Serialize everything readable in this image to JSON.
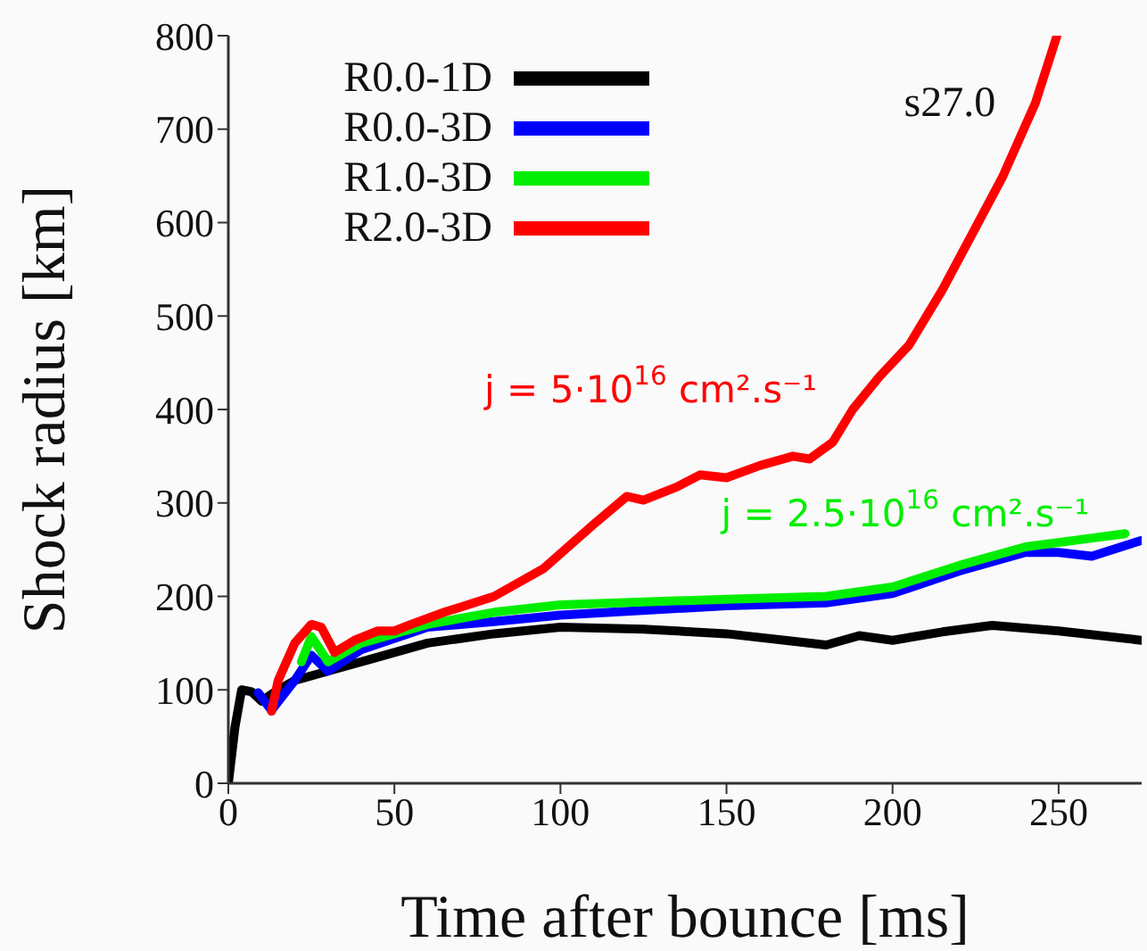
{
  "chart_data": {
    "type": "line",
    "xlabel": "Time after bounce [ms]",
    "ylabel": "Shock radius [km]",
    "xlim": [
      0,
      275
    ],
    "xticks": [
      0,
      50,
      100,
      150,
      200,
      250
    ],
    "ylim": [
      0,
      800
    ],
    "yticks": [
      0,
      100,
      200,
      300,
      400,
      500,
      600,
      700,
      800
    ],
    "grid": false,
    "legend": "top left",
    "marker": "none",
    "line_style": "solid",
    "annotations": [
      "s27.0",
      {
        "text": "j = 5·10$^{16}$ cm².s⁻¹",
        "x": 188,
        "y": 400
      },
      {
        "text": "j = 2.5·10$^{16}$ cm².s⁻¹",
        "x": 270,
        "y": 267
      }
    ],
    "series": [
      {
        "name": "R0.0-1D",
        "color": "#000000",
        "x": [
          0,
          2,
          4,
          7,
          10,
          15,
          20,
          30,
          45,
          60,
          80,
          100,
          125,
          150,
          170,
          180,
          190,
          200,
          215,
          230,
          250,
          275
        ],
        "values": [
          0,
          60,
          100,
          98,
          88,
          100,
          110,
          120,
          135,
          150,
          160,
          167,
          165,
          160,
          152,
          148,
          158,
          153,
          162,
          169,
          163,
          153
        ]
      },
      {
        "name": "R0.0-3D",
        "color": "#0000ff",
        "x": [
          9,
          13,
          20,
          25,
          30,
          40,
          60,
          80,
          100,
          150,
          180,
          200,
          220,
          240,
          250,
          260,
          275
        ],
        "values": [
          97,
          78,
          110,
          137,
          120,
          143,
          167,
          173,
          180,
          190,
          193,
          203,
          227,
          247,
          247,
          243,
          260
        ]
      },
      {
        "name": "R1.0-3D",
        "color": "#00ee00",
        "x": [
          22,
          25,
          30,
          40,
          60,
          80,
          100,
          150,
          180,
          200,
          220,
          240,
          255,
          270
        ],
        "values": [
          130,
          157,
          130,
          150,
          170,
          183,
          191,
          197,
          200,
          210,
          233,
          253,
          260,
          267
        ]
      },
      {
        "name": "R2.0-3D",
        "color": "#ff0000",
        "x": [
          13,
          15,
          20,
          25,
          28,
          32,
          38,
          45,
          50,
          55,
          65,
          80,
          95,
          110,
          120,
          125,
          135,
          142,
          150,
          160,
          170,
          175,
          182,
          188,
          196,
          205,
          215,
          224,
          233,
          243,
          249.5
        ],
        "values": [
          77,
          110,
          150,
          170,
          167,
          140,
          153,
          163,
          163,
          170,
          183,
          200,
          230,
          277,
          307,
          303,
          317,
          330,
          327,
          340,
          350,
          347,
          365,
          400,
          435,
          469,
          528,
          588,
          648,
          728,
          800
        ]
      }
    ]
  }
}
